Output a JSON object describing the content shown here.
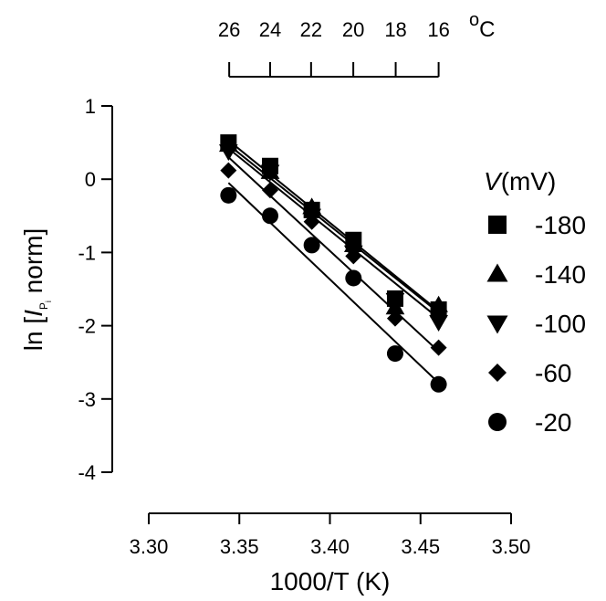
{
  "chart_data": {
    "type": "scatter",
    "xlabel": "1000/T (K)",
    "ylabel": "ln [I",
    "ylabel_subscript": "P",
    "ylabel_subsubscript": "i",
    "ylabel_suffix": " norm]",
    "xlim": [
      3.3,
      3.5
    ],
    "ylim": [
      -4,
      1
    ],
    "x_ticks": [
      3.3,
      3.35,
      3.4,
      3.45,
      3.5
    ],
    "x_tick_labels": [
      "3.30",
      "3.35",
      "3.40",
      "3.45",
      "3.50"
    ],
    "y_ticks": [
      1,
      0,
      -1,
      -2,
      -3,
      -4
    ],
    "y_tick_labels": [
      "1",
      "0",
      "-1",
      "-2",
      "-3",
      "-4"
    ],
    "top_axis": {
      "unit_label": "C",
      "unit_prefix": "o",
      "tick_x": [
        3.3444,
        3.367,
        3.3896,
        3.4129,
        3.4363,
        3.46
      ],
      "tick_labels": [
        "26",
        "24",
        "22",
        "20",
        "18",
        "16"
      ]
    },
    "legend_title_italic": "V",
    "legend_title_rest": "(mV)",
    "grid": false,
    "legend_position": "right",
    "x": [
      3.344,
      3.367,
      3.39,
      3.413,
      3.436,
      3.46
    ],
    "series": [
      {
        "name": "-180",
        "marker": "square",
        "values": [
          0.5,
          0.18,
          -0.42,
          -0.83,
          -1.63,
          -1.78
        ],
        "fit": [
          0.53,
          -1.8
        ]
      },
      {
        "name": "-140",
        "marker": "triangle-up",
        "values": [
          0.47,
          0.1,
          -0.38,
          -0.9,
          -1.75,
          -1.72
        ],
        "fit": [
          0.47,
          -1.82
        ]
      },
      {
        "name": "-100",
        "marker": "triangle-down",
        "values": [
          0.38,
          0.1,
          -0.5,
          -1.0,
          -1.65,
          -1.95
        ],
        "fit": [
          0.42,
          -1.9
        ]
      },
      {
        "name": "-60",
        "marker": "diamond",
        "values": [
          0.12,
          -0.15,
          -0.58,
          -1.05,
          -1.9,
          -2.3
        ],
        "fit": [
          0.3,
          -2.35
        ]
      },
      {
        "name": "-20",
        "marker": "circle",
        "values": [
          -0.22,
          -0.5,
          -0.9,
          -1.35,
          -2.38,
          -2.8
        ],
        "fit": [
          -0.05,
          -2.78
        ]
      }
    ]
  }
}
